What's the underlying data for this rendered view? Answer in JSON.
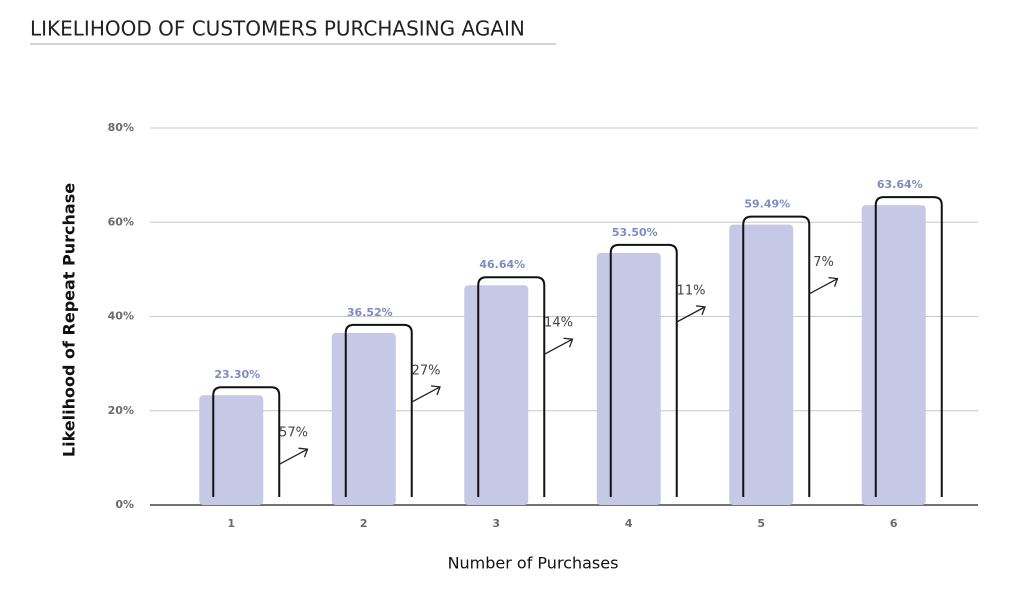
{
  "chart_data": {
    "type": "bar",
    "title": "LIKELIHOOD OF CUSTOMERS PURCHASING AGAIN",
    "x_label": "Number of Purchases",
    "y_label": "Likelihood of Repeat Purchase",
    "categories": [
      "1",
      "2",
      "3",
      "4",
      "5",
      "6"
    ],
    "values": [
      23.3,
      36.52,
      46.64,
      53.5,
      59.49,
      63.64
    ],
    "value_labels": [
      "23.30%",
      "36.52%",
      "46.64%",
      "53.50%",
      "59.49%",
      "63.64%"
    ],
    "growth_labels": [
      "57%",
      "27%",
      "14%",
      "11%",
      "7%"
    ],
    "color": "#c5c9e6",
    "label_color": "#7f8cc4",
    "ylim": [
      0,
      80
    ],
    "yticks": [
      {
        "value": 0,
        "label": "0%"
      },
      {
        "value": 20,
        "label": "20%"
      },
      {
        "value": 40,
        "label": "40%"
      },
      {
        "value": 60,
        "label": "60%"
      },
      {
        "value": 80,
        "label": "80%"
      }
    ],
    "grid": true
  }
}
